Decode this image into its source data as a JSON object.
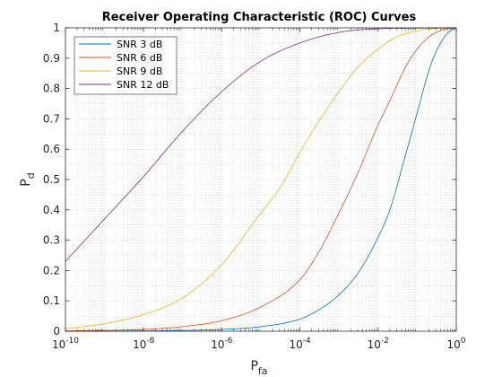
{
  "chart_data": {
    "type": "line",
    "title": "Receiver Operating Characteristic (ROC) Curves",
    "xlabel": {
      "base": "P",
      "sub": "fa"
    },
    "ylabel": {
      "base": "P",
      "sub": "d"
    },
    "xscale": "log",
    "xlim": [
      1e-10,
      1
    ],
    "ylim": [
      0,
      1
    ],
    "x_ticks": [
      {
        "value": 1e-10,
        "base": "10",
        "exp": "-10"
      },
      {
        "value": 1e-08,
        "base": "10",
        "exp": "-8"
      },
      {
        "value": 1e-06,
        "base": "10",
        "exp": "-6"
      },
      {
        "value": 0.0001,
        "base": "10",
        "exp": "-4"
      },
      {
        "value": 0.01,
        "base": "10",
        "exp": "-2"
      },
      {
        "value": 1,
        "base": "10",
        "exp": "0"
      }
    ],
    "y_ticks": [
      "0",
      "0.1",
      "0.2",
      "0.3",
      "0.4",
      "0.5",
      "0.6",
      "0.7",
      "0.8",
      "0.9",
      "1"
    ],
    "grid": "major and minor, dotted",
    "legend_position": "top-left",
    "series": [
      {
        "name": "SNR 3 dB",
        "color": "#0072BD",
        "x": [
          1e-10,
          1e-08,
          1e-06,
          1e-05,
          0.0001,
          0.0003,
          0.001,
          0.003,
          0.01,
          0.02,
          0.05,
          0.1,
          0.2,
          0.3,
          0.5,
          0.7,
          1
        ],
        "y": [
          0,
          0.001,
          0.006,
          0.015,
          0.04,
          0.07,
          0.12,
          0.19,
          0.31,
          0.4,
          0.58,
          0.72,
          0.86,
          0.92,
          0.97,
          0.99,
          1
        ]
      },
      {
        "name": "SNR 6 dB",
        "color": "#D95319",
        "x": [
          1e-10,
          1e-08,
          1e-07,
          1e-06,
          1e-05,
          0.0001,
          0.0003,
          0.001,
          0.003,
          0.01,
          0.02,
          0.05,
          0.1,
          0.2,
          0.5,
          1
        ],
        "y": [
          0.001,
          0.006,
          0.015,
          0.035,
          0.08,
          0.17,
          0.26,
          0.39,
          0.52,
          0.68,
          0.76,
          0.87,
          0.93,
          0.97,
          0.995,
          1
        ]
      },
      {
        "name": "SNR 9 dB",
        "color": "#EDB120",
        "x": [
          1e-10,
          1e-09,
          1e-08,
          1e-07,
          1e-06,
          1e-05,
          3e-05,
          0.0001,
          0.0003,
          0.001,
          0.003,
          0.01,
          0.03,
          0.1,
          0.3,
          1
        ],
        "y": [
          0.008,
          0.025,
          0.055,
          0.11,
          0.22,
          0.39,
          0.47,
          0.59,
          0.69,
          0.79,
          0.87,
          0.93,
          0.97,
          0.99,
          0.998,
          1
        ]
      },
      {
        "name": "SNR 12 dB",
        "color": "#7E2F8E",
        "x": [
          1e-10,
          1e-09,
          1e-08,
          1e-07,
          1e-06,
          1e-05,
          0.0001,
          0.001,
          0.01,
          0.1,
          1
        ],
        "y": [
          0.23,
          0.37,
          0.51,
          0.66,
          0.79,
          0.89,
          0.95,
          0.985,
          0.997,
          0.999,
          1
        ]
      }
    ]
  }
}
